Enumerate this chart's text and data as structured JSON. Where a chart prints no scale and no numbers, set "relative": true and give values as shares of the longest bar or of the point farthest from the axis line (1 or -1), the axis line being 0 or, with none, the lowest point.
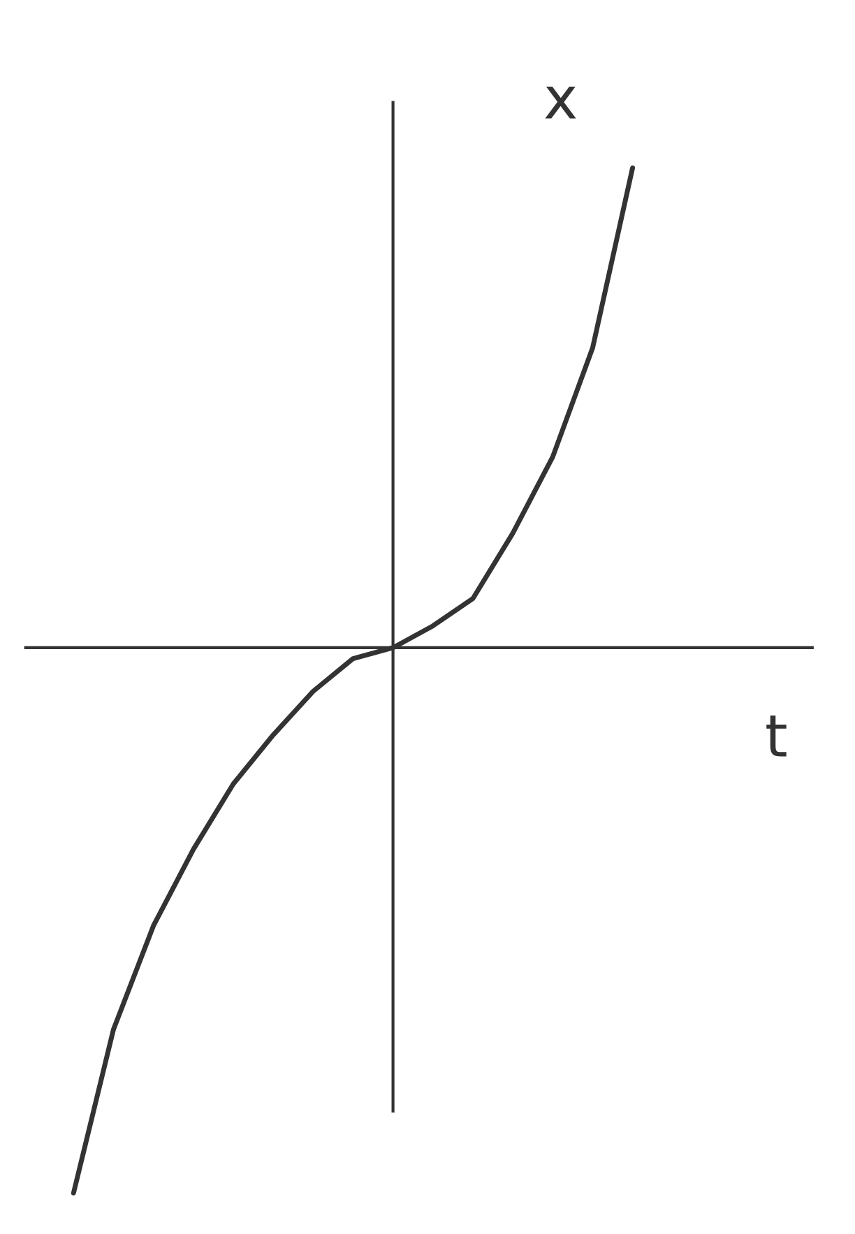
{
  "chart_data": {
    "type": "line",
    "relative": true,
    "xlabel": "t",
    "ylabel": "x",
    "categories": [
      null,
      null,
      null,
      null,
      null,
      null,
      null,
      null,
      null,
      null,
      null,
      null,
      null,
      null,
      null
    ],
    "series": [
      {
        "color": "#333333",
        "values": [
          -1,
          -0.7,
          -0.51,
          -0.37,
          -0.25,
          -0.16,
          -0.08,
          -0.02,
          0,
          0.04,
          0.09,
          0.21,
          0.35,
          0.55,
          0.88
        ]
      }
    ],
    "grid": false,
    "legend": false,
    "marker": "none",
    "line_style": "solid"
  }
}
